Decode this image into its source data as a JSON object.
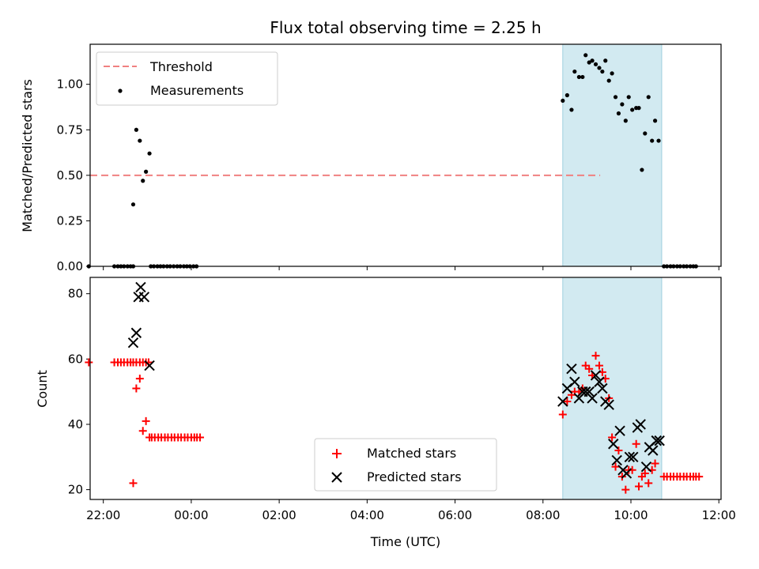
{
  "chart_data": [
    {
      "type": "scatter",
      "title": "Flux total observing time = 2.25 h",
      "xlabel": "",
      "ylabel": "Matched/Predicted stars",
      "ylim": [
        0,
        1.22
      ],
      "yticks": [
        "0.00",
        "0.25",
        "0.50",
        "0.75",
        "1.00"
      ],
      "x_unit": "hours since 22:00 UTC",
      "highlight_span": [
        10.45,
        12.7
      ],
      "legend_position": "upper-left",
      "series": [
        {
          "name": "Threshold",
          "style": "dashed-line",
          "color": "#f08080",
          "points": [
            [
              -0.3,
              0.5
            ],
            [
              11.3,
              0.5
            ]
          ]
        },
        {
          "name": "Measurements",
          "style": "dot",
          "color": "#000000",
          "points": [
            [
              -0.33,
              0.0
            ],
            [
              0.25,
              0.0
            ],
            [
              0.33,
              0.0
            ],
            [
              0.4,
              0.0
            ],
            [
              0.47,
              0.0
            ],
            [
              0.55,
              0.0
            ],
            [
              0.62,
              0.0
            ],
            [
              0.68,
              0.0
            ],
            [
              1.08,
              0.0
            ],
            [
              1.15,
              0.0
            ],
            [
              1.23,
              0.0
            ],
            [
              1.3,
              0.0
            ],
            [
              1.37,
              0.0
            ],
            [
              1.45,
              0.0
            ],
            [
              1.52,
              0.0
            ],
            [
              1.6,
              0.0
            ],
            [
              1.68,
              0.0
            ],
            [
              1.75,
              0.0
            ],
            [
              1.83,
              0.0
            ],
            [
              1.9,
              0.0
            ],
            [
              1.97,
              0.0
            ],
            [
              2.05,
              0.0
            ],
            [
              2.12,
              0.0
            ],
            [
              0.68,
              0.34
            ],
            [
              0.75,
              0.75
            ],
            [
              0.83,
              0.69
            ],
            [
              0.9,
              0.47
            ],
            [
              0.97,
              0.52
            ],
            [
              1.05,
              0.62
            ],
            [
              10.45,
              0.91
            ],
            [
              10.55,
              0.94
            ],
            [
              10.65,
              0.86
            ],
            [
              10.72,
              1.07
            ],
            [
              10.82,
              1.04
            ],
            [
              10.9,
              1.04
            ],
            [
              10.97,
              1.16
            ],
            [
              11.05,
              1.12
            ],
            [
              11.12,
              1.13
            ],
            [
              11.2,
              1.11
            ],
            [
              11.28,
              1.09
            ],
            [
              11.35,
              1.07
            ],
            [
              11.42,
              1.13
            ],
            [
              11.5,
              1.02
            ],
            [
              11.57,
              1.06
            ],
            [
              11.65,
              0.93
            ],
            [
              11.72,
              0.84
            ],
            [
              11.8,
              0.89
            ],
            [
              11.88,
              0.8
            ],
            [
              11.95,
              0.93
            ],
            [
              12.03,
              0.86
            ],
            [
              12.12,
              0.87
            ],
            [
              12.18,
              0.87
            ],
            [
              12.25,
              0.53
            ],
            [
              12.32,
              0.73
            ],
            [
              12.4,
              0.93
            ],
            [
              12.48,
              0.69
            ],
            [
              12.55,
              0.8
            ],
            [
              12.63,
              0.69
            ],
            [
              12.75,
              0.0
            ],
            [
              12.82,
              0.0
            ],
            [
              12.9,
              0.0
            ],
            [
              12.97,
              0.0
            ],
            [
              13.05,
              0.0
            ],
            [
              13.12,
              0.0
            ],
            [
              13.2,
              0.0
            ],
            [
              13.27,
              0.0
            ],
            [
              13.35,
              0.0
            ],
            [
              13.42,
              0.0
            ],
            [
              13.48,
              0.0
            ]
          ]
        }
      ]
    },
    {
      "type": "scatter",
      "title": "",
      "xlabel": "Time (UTC)",
      "ylabel": "Count",
      "xlim": [
        -0.3,
        14.05
      ],
      "xticks": [
        "22:00",
        "00:00",
        "02:00",
        "04:00",
        "06:00",
        "08:00",
        "10:00",
        "12:00"
      ],
      "ylim": [
        17,
        85
      ],
      "yticks": [
        "20",
        "40",
        "60",
        "80"
      ],
      "highlight_span": [
        10.45,
        12.7
      ],
      "legend_position": "lower-center",
      "series": [
        {
          "name": "Matched stars",
          "marker": "plus",
          "color": "#ff0000",
          "points": [
            [
              0.4,
              59
            ],
            [
              -0.33,
              59
            ],
            [
              0.25,
              59
            ],
            [
              0.33,
              59
            ],
            [
              0.47,
              59
            ],
            [
              0.55,
              59
            ],
            [
              0.62,
              59
            ],
            [
              0.68,
              59
            ],
            [
              0.75,
              59
            ],
            [
              0.83,
              59
            ],
            [
              0.9,
              59
            ],
            [
              0.97,
              59
            ],
            [
              1.03,
              59
            ],
            [
              0.68,
              22
            ],
            [
              0.75,
              51
            ],
            [
              0.83,
              54
            ],
            [
              0.9,
              38
            ],
            [
              0.97,
              41
            ],
            [
              1.05,
              36
            ],
            [
              1.1,
              36
            ],
            [
              1.17,
              36
            ],
            [
              1.25,
              36
            ],
            [
              1.32,
              36
            ],
            [
              1.4,
              36
            ],
            [
              1.47,
              36
            ],
            [
              1.55,
              36
            ],
            [
              1.62,
              36
            ],
            [
              1.7,
              36
            ],
            [
              1.77,
              36
            ],
            [
              1.85,
              36
            ],
            [
              1.92,
              36
            ],
            [
              2.0,
              36
            ],
            [
              2.07,
              36
            ],
            [
              2.13,
              36
            ],
            [
              2.2,
              36
            ],
            [
              10.45,
              43
            ],
            [
              10.55,
              47
            ],
            [
              10.65,
              49
            ],
            [
              10.72,
              50
            ],
            [
              10.82,
              50
            ],
            [
              10.9,
              51
            ],
            [
              10.97,
              58
            ],
            [
              11.05,
              57
            ],
            [
              11.12,
              55
            ],
            [
              11.2,
              61
            ],
            [
              11.28,
              58
            ],
            [
              11.35,
              56
            ],
            [
              11.42,
              54
            ],
            [
              11.5,
              48
            ],
            [
              11.57,
              36
            ],
            [
              11.65,
              27
            ],
            [
              11.72,
              32
            ],
            [
              11.8,
              24
            ],
            [
              11.88,
              20
            ],
            [
              11.95,
              26
            ],
            [
              12.03,
              26
            ],
            [
              12.12,
              34
            ],
            [
              12.18,
              21
            ],
            [
              12.25,
              24
            ],
            [
              12.32,
              25
            ],
            [
              12.4,
              22
            ],
            [
              12.48,
              26
            ],
            [
              12.55,
              28
            ],
            [
              12.75,
              24
            ],
            [
              12.82,
              24
            ],
            [
              12.9,
              24
            ],
            [
              12.97,
              24
            ],
            [
              13.05,
              24
            ],
            [
              13.12,
              24
            ],
            [
              13.2,
              24
            ],
            [
              13.27,
              24
            ],
            [
              13.35,
              24
            ],
            [
              13.42,
              24
            ],
            [
              13.48,
              24
            ],
            [
              13.55,
              24
            ]
          ]
        },
        {
          "name": "Predicted stars",
          "marker": "x",
          "color": "#000000",
          "points": [
            [
              0.68,
              65
            ],
            [
              0.75,
              68
            ],
            [
              0.8,
              79
            ],
            [
              0.85,
              82
            ],
            [
              0.93,
              79
            ],
            [
              1.05,
              58
            ],
            [
              10.45,
              47
            ],
            [
              10.55,
              51
            ],
            [
              10.65,
              57
            ],
            [
              10.72,
              53
            ],
            [
              10.82,
              48
            ],
            [
              10.9,
              50
            ],
            [
              10.97,
              50
            ],
            [
              11.05,
              50
            ],
            [
              11.12,
              48
            ],
            [
              11.2,
              55
            ],
            [
              11.28,
              53
            ],
            [
              11.35,
              51
            ],
            [
              11.42,
              47
            ],
            [
              11.5,
              46
            ],
            [
              11.6,
              34
            ],
            [
              11.68,
              29
            ],
            [
              11.75,
              38
            ],
            [
              11.82,
              26
            ],
            [
              11.9,
              25
            ],
            [
              11.97,
              30
            ],
            [
              12.05,
              30
            ],
            [
              12.15,
              39
            ],
            [
              12.22,
              40
            ],
            [
              12.35,
              27
            ],
            [
              12.42,
              33
            ],
            [
              12.5,
              32
            ],
            [
              12.58,
              35
            ],
            [
              12.65,
              35
            ]
          ]
        }
      ]
    }
  ]
}
